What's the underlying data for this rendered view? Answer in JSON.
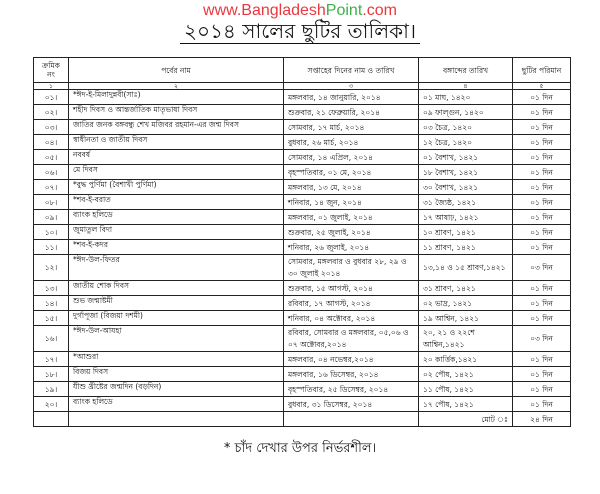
{
  "site": {
    "part1": "www.Bangladesh",
    "part2": "Point",
    "part3": ".com"
  },
  "title": "২০১৪ সালের ছুটির তালিকা।",
  "headers": [
    "ক্রমিক নং",
    "পর্বের নাম",
    "সপ্তাহের দিনের নাম ও তারিখ",
    "বঙ্গাব্দের তারিখ",
    "ছুটির পরিমান"
  ],
  "column_numbers": [
    "১",
    "২",
    "৩",
    "৪",
    "৫"
  ],
  "rows": [
    {
      "sl": "০১।",
      "name": "*ঈদ-ই-মিলাদুন্নবী(সাঃ)",
      "date": "মঙ্গলবার, ১৪ জানুয়ারি, ২০১৪",
      "bangla": "০১ মাঘ, ১৪২০",
      "days": "০১ দিন"
    },
    {
      "sl": "০২।",
      "name": "শহীদ দিবস ও আন্তর্জাতিক মাতৃভাষা দিবস",
      "date": "শুক্রবার, ২১ ফেব্রুয়ারি, ২০১৪",
      "bangla": "০৯ ফাল্গুন, ১৪২০",
      "days": "০১ দিন"
    },
    {
      "sl": "০৩।",
      "name": "জাতির জনক বঙ্গবন্ধু শেখ মজিবর রহমান-এর জন্ম দিবস",
      "date": "সোমবার, ১৭ মার্চ, ২০১৪",
      "bangla": "০৩ চৈত্র, ১৪২০",
      "days": "০১ দিন"
    },
    {
      "sl": "০৪।",
      "name": "স্বাধীনতা ও জাতীয় দিবস",
      "date": "বুধবার, ২৬ মার্চ, ২০১৪",
      "bangla": "১২ চৈত্র, ১৪২০",
      "days": "০১ দিন"
    },
    {
      "sl": "০৫।",
      "name": "নববর্ষ",
      "date": "সোমবার, ১৪ এপ্রিল, ২০১৪",
      "bangla": "০১ বৈশাখ, ১৪২১",
      "days": "০১ দিন"
    },
    {
      "sl": "০৬।",
      "name": "মে দিবস",
      "date": "বৃহস্পতিবার, ০১ মে, ২০১৪",
      "bangla": "১৮ বৈশাখ, ১৪২১",
      "days": "০১ দিন"
    },
    {
      "sl": "০৭।",
      "name": "*বুদ্ধ পুর্ণিমা (বৈশাখী পুর্ণিমা)",
      "date": "মঙ্গলবার, ১৩ মে, ২০১৪",
      "bangla": "৩০ বৈশাখ, ১৪২১",
      "days": "০১ দিন"
    },
    {
      "sl": "০৮।",
      "name": "*শব-ই-বরাত",
      "date": "শনিবার, ১৪ জুন, ২০১৪",
      "bangla": "৩১ জ্যৈষ্ঠ, ১৪২১",
      "days": "০১ দিন"
    },
    {
      "sl": "০৯।",
      "name": "ব্যাংক হলিডে",
      "date": "মঙ্গলবার, ০১ জুলাই, ২০১৪",
      "bangla": "১৭ আষাঢ়, ১৪২১",
      "days": "০১ দিন"
    },
    {
      "sl": "১০।",
      "name": "জুমাতুল বিদা",
      "date": "শুক্রবার, ২৫ জুলাই, ২০১৪",
      "bangla": "১০ শ্রাবণ, ১৪২১",
      "days": "০১ দিন"
    },
    {
      "sl": "১১।",
      "name": "*শব-ই-কদর",
      "date": "শনিবার, ২৬ জুলাই, ২০১৪",
      "bangla": "১১ শ্রাবণ, ১৪২১",
      "days": "০১ দিন"
    },
    {
      "sl": "১২।",
      "name": "*ঈদ-উল-ফিতর",
      "date": "সোমবার, মঙ্গলবার ও বুধবার ২৮, ২৯ ও ৩০ জুলাই ২০১৪",
      "bangla": "১৩,১৪ ও ১৫ শ্রাবণ,১৪২১",
      "days": "০৩ দিন",
      "tall": true
    },
    {
      "sl": "১৩।",
      "name": "জাতীয় শোক দিবস",
      "date": "শুক্রবার, ১৫ আগস্ট, ২০১৪",
      "bangla": "৩১ শ্রাবণ, ১৪২১",
      "days": "০১ দিন"
    },
    {
      "sl": "১৪।",
      "name": "শুভ জন্মাষ্টমী",
      "date": "রবিবার, ১৭ আগস্ট, ২০১৪",
      "bangla": "০২ ভাদ্র, ১৪২১",
      "days": "০১ দিন"
    },
    {
      "sl": "১৫।",
      "name": "দুর্গাপূজা (বিজয়া দশমী)",
      "date": "শনিবার, ০৪ অক্টোবর, ২০১৪",
      "bangla": "১৯ আশ্বিন, ১৪২১",
      "days": "০১ দিন"
    },
    {
      "sl": "১৬।",
      "name": "*ঈদ-উল-আযহা",
      "date": "রবিবার, সোমবার ও মঙ্গলবার, ০৫,০৬ ও ০৭ অক্টোবর,২০১৪",
      "bangla": "২০, ২১ ও ২২শে আশ্বিন,১৪২১",
      "days": "০৩ দিন",
      "tall": true
    },
    {
      "sl": "১৭।",
      "name": "*আশুরা",
      "date": "মঙ্গলবার, ০৪ নভেম্বর,২০১৪",
      "bangla": "২০ কার্ত্তিক,১৪২১",
      "days": "০১ দিন"
    },
    {
      "sl": "১৮।",
      "name": "বিজয় দিবস",
      "date": "মঙ্গলবার, ১৬ ডিসেম্বর, ২০১৪",
      "bangla": "০২ পৌষ, ১৪২১",
      "days": "০১ দিন"
    },
    {
      "sl": "১৯।",
      "name": "যীশু খ্রীষ্টের জন্মদিন (বড়দিন)",
      "date": "বৃহস্পতিবার, ২৫ ডিসেম্বর, ২০১৪",
      "bangla": "১১ পৌষ, ১৪২১",
      "days": "০১ দিন"
    },
    {
      "sl": "২০।",
      "name": "ব্যাংক হলিডে",
      "date": "বুধবার, ৩১ ডিসেম্বর, ২০১৪",
      "bangla": "১৭ পৌষ, ১৪২১",
      "days": "০১ দিন"
    }
  ],
  "total": {
    "label": "মোট ঃ",
    "value": "২৪ দিন"
  },
  "footnote": "* চাঁদ দেখার উপর নির্ভরশীল।"
}
